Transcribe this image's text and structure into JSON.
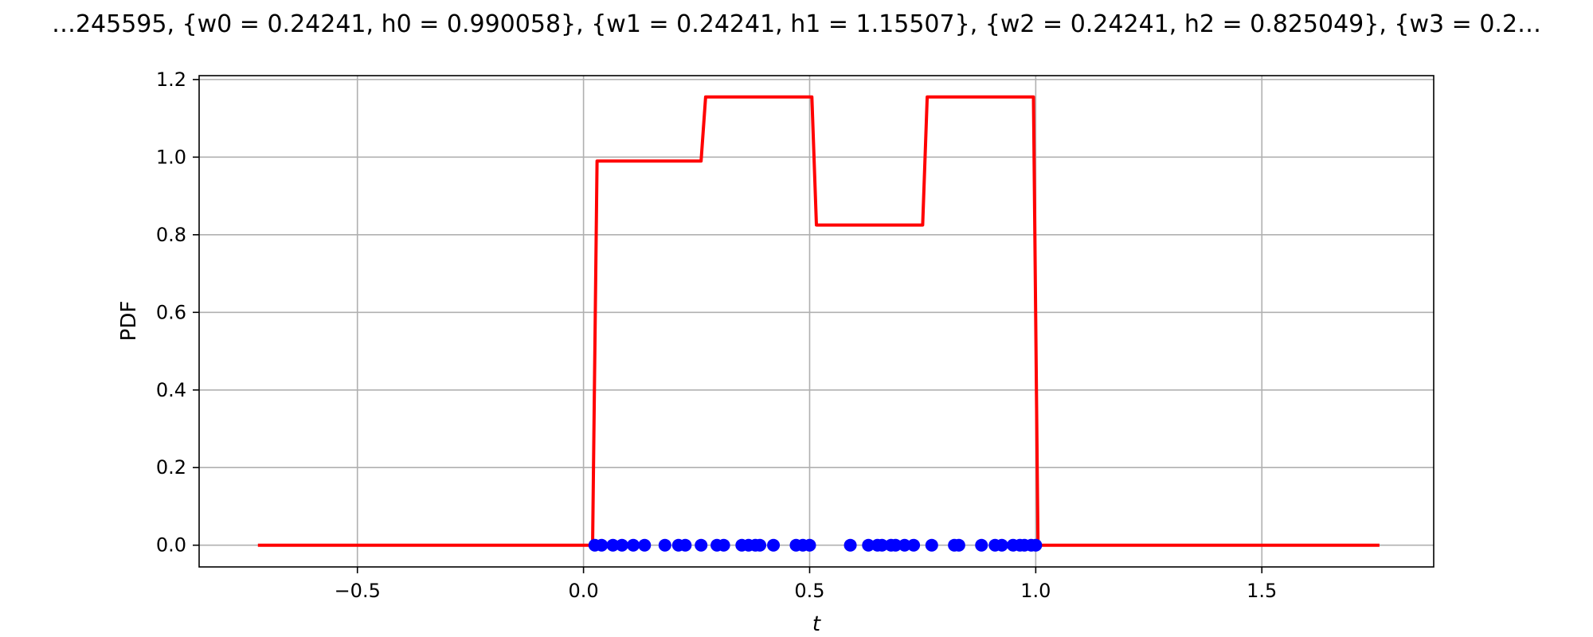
{
  "chart_data": {
    "type": "line",
    "title": "…245595, {w0 = 0.24241, h0 = 0.990058}, {w1 = 0.24241, h1 = 1.15507}, {w2 = 0.24241, h2 = 0.825049}, {w3 = 0.2…",
    "xlabel": "t",
    "ylabel": "PDF",
    "xlim": [
      -0.85,
      1.88
    ],
    "ylim": [
      -0.056,
      1.21
    ],
    "xticks": [
      -0.5,
      0.0,
      0.5,
      1.0,
      1.5
    ],
    "xtick_labels": [
      "−0.5",
      "0.0",
      "0.5",
      "1.0",
      "1.5"
    ],
    "yticks": [
      0.0,
      0.2,
      0.4,
      0.6,
      0.8,
      1.0,
      1.2
    ],
    "ytick_labels": [
      "0.0",
      "0.2",
      "0.4",
      "0.6",
      "0.8",
      "1.0",
      "1.2"
    ],
    "grid": true,
    "colors": {
      "pdf_line": "#ff0000",
      "samples": "#0000ff",
      "grid": "#b0b0b0"
    },
    "series": [
      {
        "kind": "line",
        "x": [
          -0.72,
          0.02,
          0.03,
          0.26,
          0.27,
          0.505,
          0.515,
          0.75,
          0.76,
          0.995,
          1.005,
          1.76
        ],
        "y": [
          0.0,
          0.0,
          0.990058,
          0.990058,
          1.15507,
          1.15507,
          0.825049,
          0.825049,
          1.15507,
          1.15507,
          0.0,
          0.0
        ]
      },
      {
        "kind": "scatter",
        "x": [
          0.025,
          0.04,
          0.065,
          0.085,
          0.11,
          0.135,
          0.18,
          0.21,
          0.225,
          0.26,
          0.295,
          0.31,
          0.35,
          0.365,
          0.38,
          0.39,
          0.42,
          0.47,
          0.485,
          0.5,
          0.59,
          0.63,
          0.65,
          0.66,
          0.68,
          0.69,
          0.71,
          0.73,
          0.77,
          0.82,
          0.83,
          0.88,
          0.91,
          0.925,
          0.95,
          0.965,
          0.975,
          0.99,
          1.0
        ],
        "y": [
          0,
          0,
          0,
          0,
          0,
          0,
          0,
          0,
          0,
          0,
          0,
          0,
          0,
          0,
          0,
          0,
          0,
          0,
          0,
          0,
          0,
          0,
          0,
          0,
          0,
          0,
          0,
          0,
          0,
          0,
          0,
          0,
          0,
          0,
          0,
          0,
          0,
          0,
          0
        ]
      }
    ]
  }
}
